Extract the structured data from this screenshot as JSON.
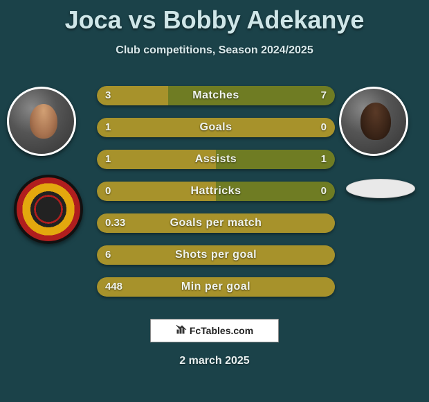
{
  "title": "Joca vs Bobby Adekanye",
  "subtitle": "Club competitions, Season 2024/2025",
  "date": "2 march 2025",
  "footer_brand": "FcTables.com",
  "colors": {
    "background": "#1b4249",
    "bar_left": "#a7922b",
    "bar_right": "#6f7c23",
    "text_light": "#f0f4ee"
  },
  "rows": [
    {
      "label": "Matches",
      "left_val": "3",
      "right_val": "7",
      "left_pct": 30,
      "right_pct": 70
    },
    {
      "label": "Goals",
      "left_val": "1",
      "right_val": "0",
      "left_pct": 100,
      "right_pct": 0
    },
    {
      "label": "Assists",
      "left_val": "1",
      "right_val": "1",
      "left_pct": 50,
      "right_pct": 50
    },
    {
      "label": "Hattricks",
      "left_val": "0",
      "right_val": "0",
      "left_pct": 50,
      "right_pct": 50
    },
    {
      "label": "Goals per match",
      "left_val": "0.33",
      "right_val": "",
      "left_pct": 100,
      "right_pct": 0
    },
    {
      "label": "Shots per goal",
      "left_val": "6",
      "right_val": "",
      "left_pct": 100,
      "right_pct": 0
    },
    {
      "label": "Min per goal",
      "left_val": "448",
      "right_val": "",
      "left_pct": 100,
      "right_pct": 0
    }
  ]
}
